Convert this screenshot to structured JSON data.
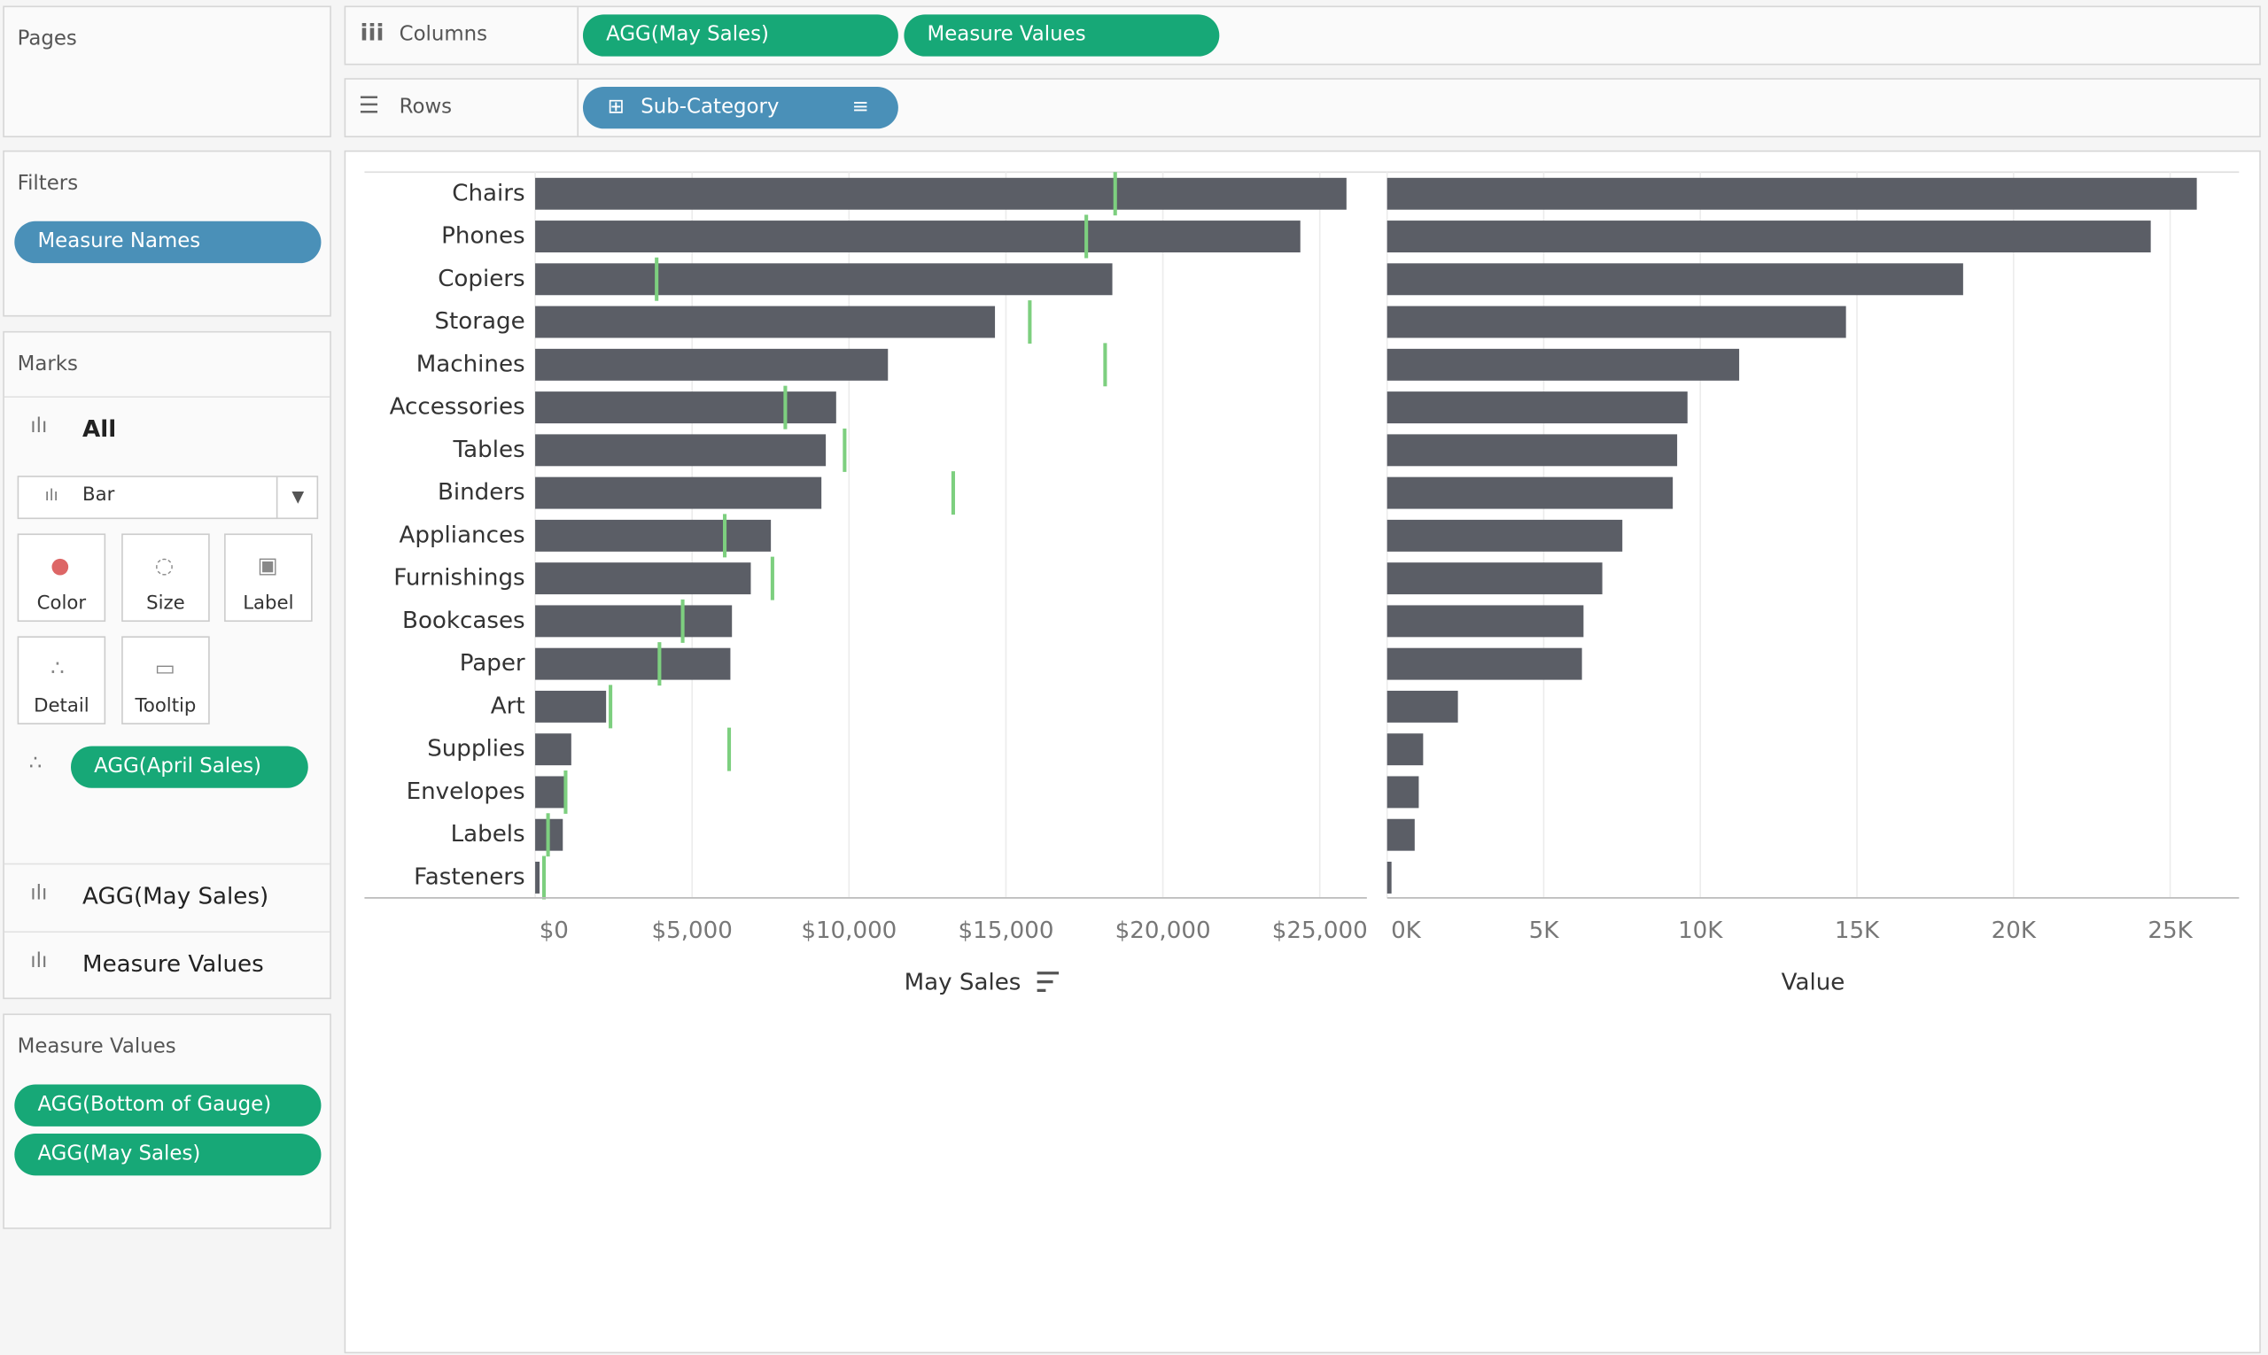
{
  "sidebar": {
    "pages": {
      "title": "Pages"
    },
    "filters": {
      "title": "Filters",
      "pills": [
        "Measure Names"
      ]
    },
    "marks": {
      "title": "Marks",
      "all": "All",
      "mark_type": "Bar",
      "buttons": [
        "Color",
        "Size",
        "Label",
        "Detail",
        "Tooltip"
      ],
      "detail_pill": "AGG(April Sales)",
      "sections": [
        "AGG(May Sales)",
        "Measure Values"
      ]
    },
    "measure_values": {
      "title": "Measure Values",
      "pills": [
        "AGG(Bottom of Gauge)",
        "AGG(May Sales)"
      ]
    }
  },
  "shelves": {
    "columns": {
      "label": "Columns",
      "pills": [
        "AGG(May Sales)",
        "Measure Values"
      ]
    },
    "rows": {
      "label": "Rows",
      "pills": [
        "Sub-Category"
      ]
    }
  },
  "chart_data": [
    {
      "type": "bar",
      "orientation": "horizontal",
      "x_label": "May Sales",
      "categories": [
        "Chairs",
        "Phones",
        "Copiers",
        "Storage",
        "Machines",
        "Accessories",
        "Tables",
        "Binders",
        "Appliances",
        "Furnishings",
        "Bookcases",
        "Paper",
        "Art",
        "Supplies",
        "Envelopes",
        "Labels",
        "Fasteners"
      ],
      "values": [
        25850,
        24380,
        18390,
        14650,
        11240,
        9590,
        9260,
        9120,
        7510,
        6870,
        6270,
        6220,
        2260,
        1150,
        1010,
        880,
        140
      ],
      "color": "#5b5e66",
      "reference_lines": {
        "values": [
          18480,
          17560,
          3870,
          15760,
          18160,
          7970,
          9860,
          13320,
          6040,
          7560,
          4700,
          3960,
          2400,
          6180,
          970,
          410,
          280
        ],
        "color": "#7dcf7f"
      },
      "xlim": [
        0,
        26500
      ],
      "xticks": [
        {
          "value": 0,
          "label": "$0"
        },
        {
          "value": 5000,
          "label": "$5,000"
        },
        {
          "value": 10000,
          "label": "$10,000"
        },
        {
          "value": 15000,
          "label": "$15,000"
        },
        {
          "value": 20000,
          "label": "$20,000"
        },
        {
          "value": 25000,
          "label": "$25,000"
        }
      ],
      "grid": true
    },
    {
      "type": "bar",
      "orientation": "horizontal",
      "x_label": "Value",
      "values": [
        25850,
        24380,
        18390,
        14650,
        11240,
        9590,
        9260,
        9120,
        7510,
        6870,
        6270,
        6220,
        2260,
        1150,
        1010,
        880,
        140
      ],
      "color": "#5b5e66",
      "xlim": [
        0,
        27200
      ],
      "xticks": [
        {
          "value": 0,
          "label": "0K"
        },
        {
          "value": 5000,
          "label": "5K"
        },
        {
          "value": 10000,
          "label": "10K"
        },
        {
          "value": 15000,
          "label": "15K"
        },
        {
          "value": 20000,
          "label": "20K"
        },
        {
          "value": 25000,
          "label": "25K"
        }
      ],
      "grid": true
    }
  ]
}
